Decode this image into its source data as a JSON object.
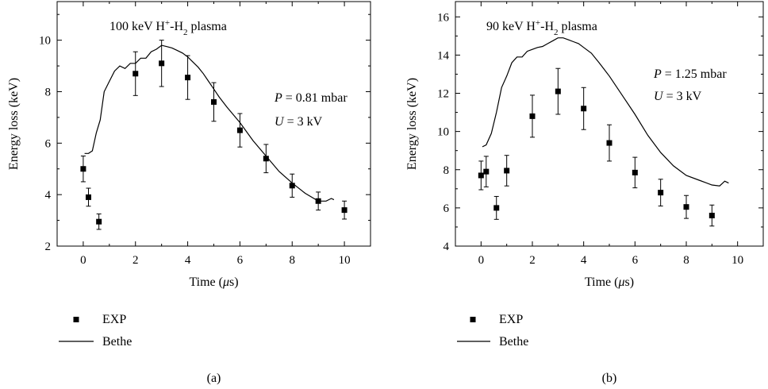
{
  "chart_data": [
    {
      "type": "scatter",
      "panel_label": "(a)",
      "title": "100 keV H+-H2 plasma",
      "title_parts": {
        "base": "100 keV H",
        "sup": "+",
        "mid": "-H",
        "sub": "2",
        "end": " plasma"
      },
      "annotations": [
        "P = 0.81 mbar",
        "U = 3 kV"
      ],
      "annotation_parts": [
        {
          "var": "P",
          "rest": " = 0.81 mbar"
        },
        {
          "var": "U",
          "rest": " = 3 kV"
        }
      ],
      "xlabel": "Time (μs)",
      "xlabel_parts": {
        "pre": "Time (",
        "var": "μ",
        "post": "s)"
      },
      "ylabel": "Energy loss (keV)",
      "xlim": [
        -1,
        11
      ],
      "ylim": [
        2,
        11.5
      ],
      "xticks": [
        0,
        2,
        4,
        6,
        8,
        10
      ],
      "yticks": [
        2,
        4,
        6,
        8,
        10
      ],
      "legend": [
        "EXP",
        "Bethe"
      ],
      "legend_position": "below",
      "grid": false,
      "series": [
        {
          "name": "EXP",
          "kind": "points",
          "points": [
            {
              "x": 0,
              "y": 5.0,
              "err": 0.5
            },
            {
              "x": 0.2,
              "y": 3.9,
              "err": 0.35
            },
            {
              "x": 0.6,
              "y": 2.95,
              "err": 0.3
            },
            {
              "x": 2,
              "y": 8.7,
              "err": 0.85
            },
            {
              "x": 3,
              "y": 9.1,
              "err": 0.9
            },
            {
              "x": 4,
              "y": 8.55,
              "err": 0.85
            },
            {
              "x": 5,
              "y": 7.6,
              "err": 0.75
            },
            {
              "x": 6,
              "y": 6.5,
              "err": 0.65
            },
            {
              "x": 7,
              "y": 5.4,
              "err": 0.55
            },
            {
              "x": 8,
              "y": 4.35,
              "err": 0.45
            },
            {
              "x": 9,
              "y": 3.75,
              "err": 0.35
            },
            {
              "x": 10,
              "y": 3.4,
              "err": 0.35
            }
          ]
        },
        {
          "name": "Bethe",
          "kind": "line",
          "x": [
            0.05,
            0.2,
            0.35,
            0.5,
            0.65,
            0.8,
            1.0,
            1.2,
            1.4,
            1.6,
            1.8,
            2.0,
            2.2,
            2.4,
            2.6,
            2.8,
            3.0,
            3.2,
            3.4,
            3.6,
            3.8,
            4.0,
            4.2,
            4.4,
            4.6,
            4.8,
            5.0,
            5.2,
            5.5,
            6.0,
            6.5,
            7.0,
            7.5,
            8.0,
            8.5,
            9.0,
            9.3,
            9.5,
            9.6
          ],
          "y": [
            5.6,
            5.6,
            5.7,
            6.4,
            6.9,
            8.0,
            8.4,
            8.8,
            9.0,
            8.9,
            9.1,
            9.1,
            9.3,
            9.3,
            9.55,
            9.65,
            9.8,
            9.75,
            9.7,
            9.6,
            9.5,
            9.35,
            9.15,
            8.95,
            8.7,
            8.4,
            8.1,
            7.8,
            7.4,
            6.8,
            6.1,
            5.5,
            4.9,
            4.45,
            4.05,
            3.75,
            3.75,
            3.85,
            3.8
          ]
        }
      ]
    },
    {
      "type": "scatter",
      "panel_label": "(b)",
      "title": "90 keV H+-H2 plasma",
      "title_parts": {
        "base": "90 keV H",
        "sup": "+",
        "mid": "-H",
        "sub": "2",
        "end": " plasma"
      },
      "annotations": [
        "P = 1.25 mbar",
        "U = 3 kV"
      ],
      "annotation_parts": [
        {
          "var": "P",
          "rest": " = 1.25 mbar"
        },
        {
          "var": "U",
          "rest": " = 3 kV"
        }
      ],
      "xlabel": "Time (μs)",
      "xlabel_parts": {
        "pre": "Time (",
        "var": "μ",
        "post": "s)"
      },
      "ylabel": "Energy loss (keV)",
      "xlim": [
        -1,
        11
      ],
      "ylim": [
        4,
        16.8
      ],
      "xticks": [
        0,
        2,
        4,
        6,
        8,
        10
      ],
      "yticks": [
        4,
        6,
        8,
        10,
        12,
        14,
        16
      ],
      "legend": [
        "EXP",
        "Bethe"
      ],
      "legend_position": "below",
      "grid": false,
      "series": [
        {
          "name": "EXP",
          "kind": "points",
          "points": [
            {
              "x": 0,
              "y": 7.7,
              "err": 0.75
            },
            {
              "x": 0.2,
              "y": 7.9,
              "err": 0.8
            },
            {
              "x": 0.6,
              "y": 6.0,
              "err": 0.6
            },
            {
              "x": 1,
              "y": 7.95,
              "err": 0.8
            },
            {
              "x": 2,
              "y": 10.8,
              "err": 1.1
            },
            {
              "x": 3,
              "y": 12.1,
              "err": 1.2
            },
            {
              "x": 4,
              "y": 11.2,
              "err": 1.1
            },
            {
              "x": 5,
              "y": 9.4,
              "err": 0.95
            },
            {
              "x": 6,
              "y": 7.85,
              "err": 0.8
            },
            {
              "x": 7,
              "y": 6.8,
              "err": 0.7
            },
            {
              "x": 8,
              "y": 6.05,
              "err": 0.6
            },
            {
              "x": 9,
              "y": 5.6,
              "err": 0.55
            }
          ]
        },
        {
          "name": "Bethe",
          "kind": "line",
          "x": [
            0.05,
            0.2,
            0.4,
            0.6,
            0.8,
            1.0,
            1.2,
            1.4,
            1.6,
            1.8,
            2.0,
            2.2,
            2.4,
            2.6,
            2.8,
            3.0,
            3.2,
            3.4,
            3.6,
            3.8,
            4.0,
            4.3,
            4.6,
            5.0,
            5.5,
            6.0,
            6.5,
            7.0,
            7.5,
            8.0,
            8.5,
            9.0,
            9.3,
            9.5,
            9.65
          ],
          "y": [
            9.2,
            9.3,
            9.9,
            11.0,
            12.3,
            12.9,
            13.6,
            13.9,
            13.9,
            14.2,
            14.3,
            14.4,
            14.45,
            14.6,
            14.75,
            14.9,
            14.9,
            14.8,
            14.7,
            14.6,
            14.4,
            14.1,
            13.6,
            12.9,
            11.9,
            10.9,
            9.8,
            8.9,
            8.2,
            7.7,
            7.45,
            7.2,
            7.15,
            7.4,
            7.3
          ]
        }
      ]
    }
  ]
}
